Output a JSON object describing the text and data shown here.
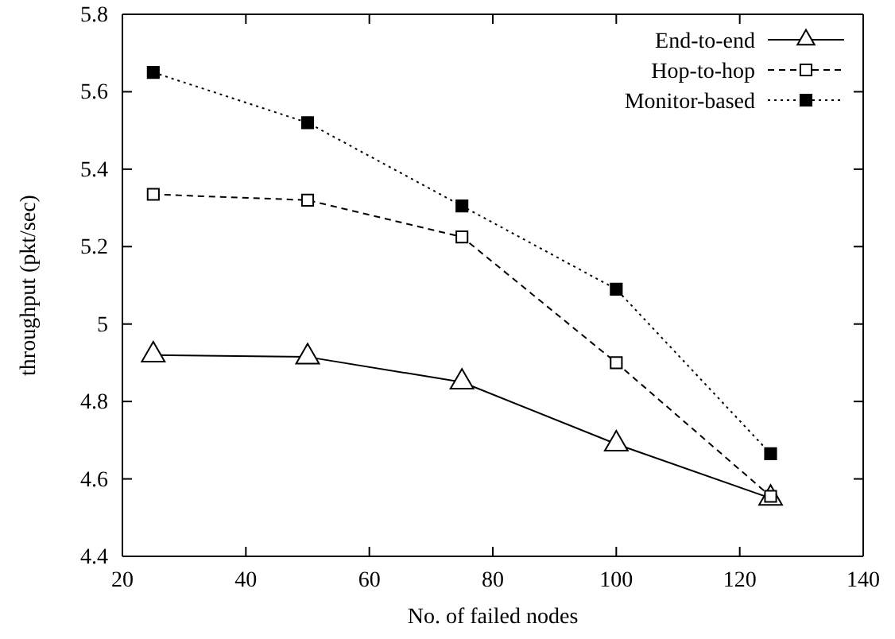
{
  "chart_data": {
    "type": "line",
    "xlabel": "No. of failed nodes",
    "ylabel": "throughput (pkt/sec)",
    "x": [
      25,
      50,
      75,
      100,
      125
    ],
    "series": [
      {
        "name": "End-to-end",
        "color": "#000000",
        "marker": "triangle",
        "line_style": "solid",
        "values": [
          4.92,
          4.915,
          4.85,
          4.69,
          4.55
        ]
      },
      {
        "name": "Hop-to-hop",
        "color": "#000000",
        "marker": "square",
        "line_style": "dashed",
        "values": [
          5.335,
          5.32,
          5.225,
          4.9,
          4.555
        ]
      },
      {
        "name": "Monitor-based",
        "color": "#000000",
        "marker": "square",
        "line_style": "dotted",
        "values": [
          5.65,
          5.52,
          5.305,
          5.09,
          4.665
        ]
      }
    ],
    "xlim": [
      20,
      140
    ],
    "xticks": [
      20,
      40,
      60,
      80,
      100,
      120,
      140
    ],
    "ylim": [
      4.4,
      5.8
    ],
    "yticks": [
      {
        "value": 4.4,
        "label": "4.4"
      },
      {
        "value": 4.6,
        "label": "4.6"
      },
      {
        "value": 4.8,
        "label": "4.8"
      },
      {
        "value": 5,
        "label": "5"
      },
      {
        "value": 5.2,
        "label": "5.2"
      },
      {
        "value": 5.4,
        "label": "5.4"
      },
      {
        "value": 5.6,
        "label": "5.6"
      },
      {
        "value": 5.8,
        "label": "5.8"
      }
    ],
    "grid": false,
    "legend": "top right"
  }
}
